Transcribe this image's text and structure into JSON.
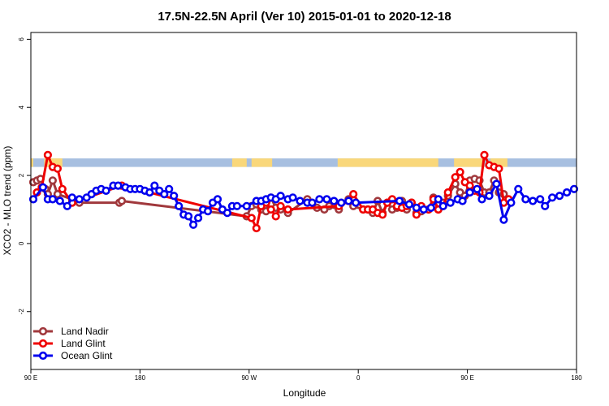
{
  "chart_data": {
    "type": "line",
    "title": "17.5N-22.5N April (Ver 10)   2015-01-01 to 2020-12-18",
    "xlabel": "Longitude",
    "ylabel": "XCO2 - MLO trend (ppm)",
    "xlim": [
      0,
      450
    ],
    "ylim": [
      -3.7,
      6.2
    ],
    "x_ticks": [
      {
        "value": 0,
        "label": "90 E"
      },
      {
        "value": 90,
        "label": "180"
      },
      {
        "value": 180,
        "label": "90 W"
      },
      {
        "value": 270,
        "label": "0"
      },
      {
        "value": 360,
        "label": "90 E"
      },
      {
        "value": 450,
        "label": "180"
      }
    ],
    "y_ticks": [
      {
        "value": -2,
        "label": "-2"
      },
      {
        "value": 0,
        "label": "0"
      },
      {
        "value": 2,
        "label": "2"
      },
      {
        "value": 4,
        "label": "4"
      },
      {
        "value": 6,
        "label": "6"
      }
    ],
    "legend_position": "bottom-left",
    "grid": false,
    "land_mask_band": {
      "y_range": [
        2.25,
        2.5
      ],
      "ocean_color": "#a7bfe0",
      "land_color": "#f9d77a",
      "land_x_ranges": [
        [
          0,
          2
        ],
        [
          11,
          26
        ],
        [
          166,
          178
        ],
        [
          182,
          199
        ],
        [
          253,
          336
        ],
        [
          349,
          374
        ],
        [
          379,
          393
        ]
      ]
    },
    "series": [
      {
        "name": "Land Nadir",
        "color": "#a0383c",
        "x": [
          2,
          5,
          8,
          12,
          14,
          18,
          22,
          34,
          40,
          73,
          75,
          178,
          182,
          186,
          190,
          194,
          198,
          202,
          206,
          212,
          228,
          236,
          242,
          246,
          254,
          262,
          266,
          274,
          278,
          282,
          286,
          290,
          294,
          298,
          302,
          306,
          310,
          314,
          318,
          322,
          328,
          332,
          336,
          340,
          344,
          350,
          354,
          358,
          362,
          366,
          370,
          374,
          378,
          382,
          386,
          390
        ],
        "y": [
          1.8,
          1.85,
          1.9,
          1.6,
          1.45,
          1.85,
          1.45,
          1.3,
          1.2,
          1.2,
          1.25,
          0.8,
          1.1,
          1.15,
          1.0,
          0.95,
          1.35,
          1.05,
          1.0,
          0.9,
          1.3,
          1.05,
          1.0,
          1.1,
          1.0,
          1.3,
          1.1,
          1.0,
          1.0,
          0.9,
          1.25,
          0.9,
          1.2,
          1.0,
          1.05,
          1.25,
          1.0,
          1.2,
          0.9,
          0.95,
          1.0,
          1.35,
          1.0,
          1.2,
          1.4,
          1.75,
          1.5,
          1.4,
          1.85,
          1.9,
          1.85,
          1.5,
          1.5,
          1.85,
          1.5,
          1.45
        ]
      },
      {
        "name": "Land Glint",
        "color": "#ef0000",
        "x": [
          5,
          9,
          14,
          18,
          22,
          26,
          34,
          75,
          182,
          186,
          190,
          194,
          198,
          202,
          206,
          212,
          254,
          262,
          266,
          274,
          278,
          282,
          286,
          290,
          294,
          298,
          302,
          306,
          310,
          314,
          318,
          322,
          328,
          332,
          336,
          340,
          344,
          350,
          354,
          358,
          362,
          366,
          370,
          374,
          378,
          382,
          386,
          390,
          394
        ],
        "y": [
          1.5,
          1.65,
          2.6,
          2.25,
          2.2,
          1.6,
          1.2,
          1.7,
          0.75,
          0.45,
          1.1,
          1.2,
          1.0,
          0.8,
          1.1,
          1.0,
          1.1,
          1.25,
          1.45,
          1.0,
          1.0,
          1.0,
          0.9,
          0.85,
          1.2,
          1.3,
          1.1,
          1.05,
          1.1,
          1.2,
          0.85,
          1.1,
          1.0,
          1.3,
          1.0,
          1.1,
          1.5,
          1.95,
          2.1,
          1.8,
          1.7,
          1.55,
          1.5,
          2.6,
          2.3,
          2.25,
          2.2,
          1.2,
          1.3
        ]
      },
      {
        "name": "Ocean Glint",
        "color": "#0000ee",
        "x": [
          2,
          10,
          14,
          18,
          24,
          30,
          34,
          40,
          46,
          50,
          54,
          58,
          62,
          68,
          72,
          78,
          82,
          86,
          90,
          94,
          98,
          102,
          106,
          110,
          114,
          118,
          122,
          126,
          130,
          134,
          138,
          142,
          146,
          150,
          154,
          158,
          162,
          166,
          170,
          178,
          186,
          190,
          194,
          198,
          202,
          206,
          212,
          216,
          222,
          228,
          232,
          238,
          244,
          250,
          256,
          262,
          268,
          304,
          312,
          318,
          324,
          330,
          336,
          340,
          346,
          352,
          356,
          362,
          368,
          372,
          378,
          384,
          390,
          396,
          402,
          408,
          414,
          420,
          424,
          430,
          436,
          442,
          448
        ],
        "y": [
          1.3,
          1.65,
          1.3,
          1.3,
          1.25,
          1.1,
          1.35,
          1.3,
          1.35,
          1.45,
          1.55,
          1.6,
          1.55,
          1.7,
          1.7,
          1.65,
          1.6,
          1.6,
          1.6,
          1.55,
          1.5,
          1.7,
          1.55,
          1.45,
          1.6,
          1.4,
          1.1,
          0.85,
          0.8,
          0.55,
          0.75,
          1.0,
          0.95,
          1.2,
          1.3,
          1.0,
          0.9,
          1.1,
          1.1,
          1.1,
          1.25,
          1.25,
          1.3,
          1.35,
          1.3,
          1.4,
          1.3,
          1.35,
          1.25,
          1.2,
          1.2,
          1.3,
          1.3,
          1.25,
          1.2,
          1.25,
          1.2,
          1.25,
          1.15,
          1.05,
          1.0,
          1.05,
          1.3,
          1.1,
          1.2,
          1.3,
          1.25,
          1.5,
          1.6,
          1.3,
          1.4,
          1.75,
          0.7,
          1.2,
          1.6,
          1.3,
          1.25,
          1.3,
          1.1,
          1.35,
          1.4,
          1.5,
          1.6
        ]
      }
    ]
  }
}
